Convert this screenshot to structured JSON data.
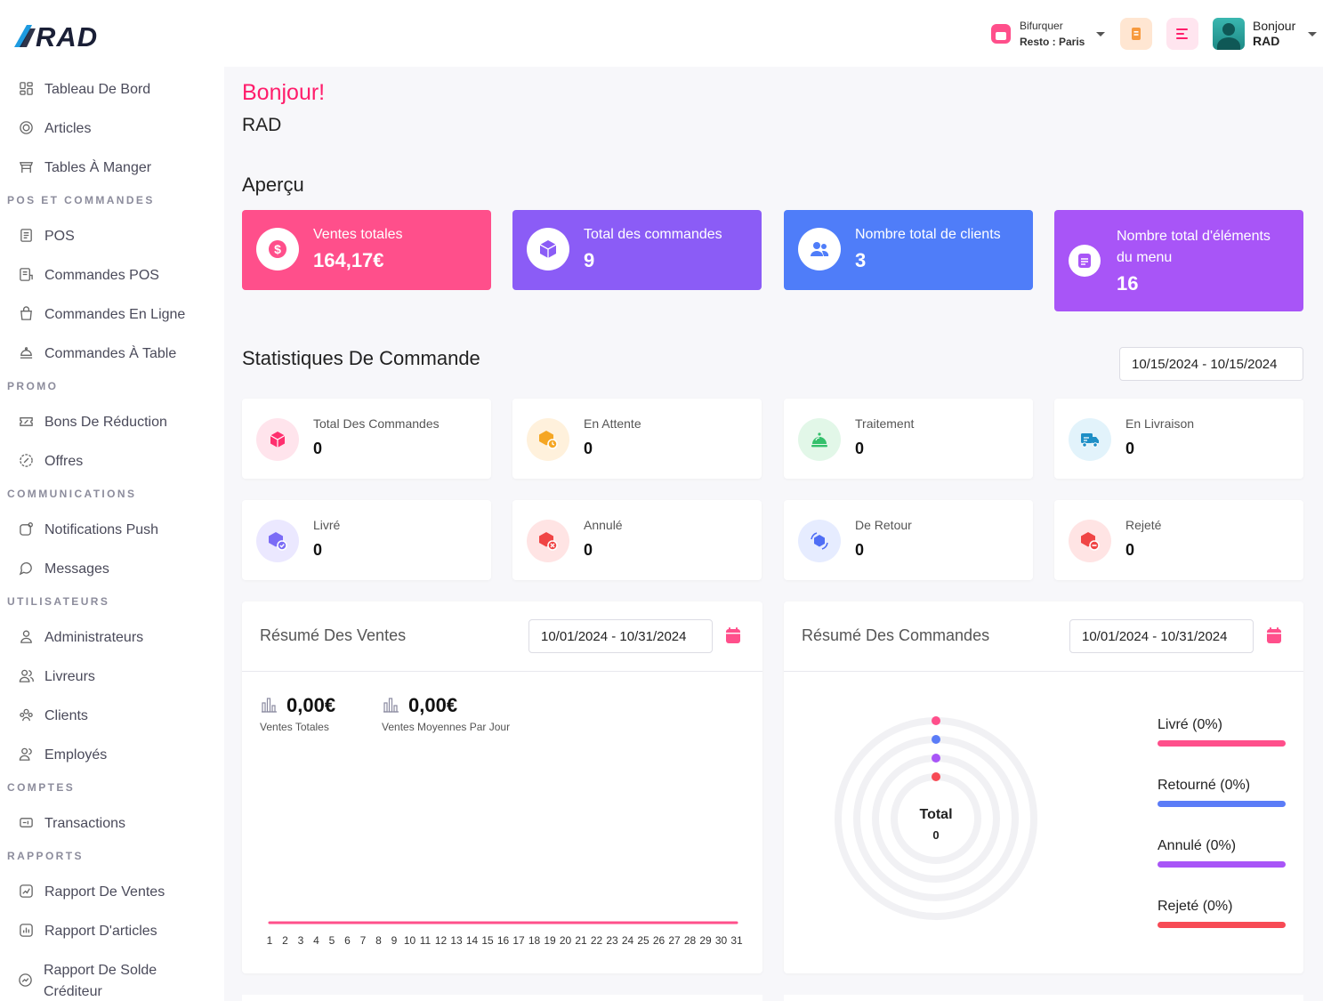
{
  "header": {
    "logo_text": "RAD",
    "branch_line1": "Bifurquer",
    "branch_line2": "Resto : Paris",
    "user_greeting": "Bonjour",
    "user_name": "RAD"
  },
  "sidebar": {
    "items_top": [
      {
        "label": "Tableau De Bord",
        "icon": "dashboard-icon"
      },
      {
        "label": "Articles",
        "icon": "articles-icon"
      },
      {
        "label": "Tables À Manger",
        "icon": "dining-table-icon"
      }
    ],
    "section_pos": "POS ET COMMANDES",
    "items_pos": [
      {
        "label": "POS",
        "icon": "pos-icon"
      },
      {
        "label": "Commandes POS",
        "icon": "pos-orders-icon"
      },
      {
        "label": "Commandes En Ligne",
        "icon": "online-orders-icon"
      },
      {
        "label": "Commandes À Table",
        "icon": "table-orders-icon"
      }
    ],
    "section_promo": "PROMO",
    "items_promo": [
      {
        "label": "Bons De Réduction",
        "icon": "coupon-icon"
      },
      {
        "label": "Offres",
        "icon": "offer-icon"
      }
    ],
    "section_comm": "COMMUNICATIONS",
    "items_comm": [
      {
        "label": "Notifications Push",
        "icon": "push-notification-icon"
      },
      {
        "label": "Messages",
        "icon": "messages-icon"
      }
    ],
    "section_users": "UTILISATEURS",
    "items_users": [
      {
        "label": "Administrateurs",
        "icon": "admin-icon"
      },
      {
        "label": "Livreurs",
        "icon": "delivery-boys-icon"
      },
      {
        "label": "Clients",
        "icon": "customers-icon"
      },
      {
        "label": "Employés",
        "icon": "employees-icon"
      }
    ],
    "section_accounts": "COMPTES",
    "items_accounts": [
      {
        "label": "Transactions",
        "icon": "transactions-icon"
      }
    ],
    "section_reports": "RAPPORTS",
    "items_reports": [
      {
        "label": "Rapport De Ventes",
        "icon": "sales-report-icon"
      },
      {
        "label": "Rapport D'articles",
        "icon": "items-report-icon"
      },
      {
        "label": "Rapport De Solde Créditeur",
        "icon": "credit-balance-report-icon"
      }
    ]
  },
  "main": {
    "greeting": "Bonjour!",
    "greeting_name": "RAD",
    "overview_title": "Aperçu",
    "kpis": [
      {
        "title": "Ventes totales",
        "value": "164,17€",
        "color": "#ff4f8b",
        "icon": "dollar-icon"
      },
      {
        "title": "Total des commandes",
        "value": "9",
        "color": "#8b5cf6",
        "icon": "box-icon"
      },
      {
        "title": "Nombre total de clients",
        "value": "3",
        "color": "#4f7df9",
        "icon": "users-icon"
      },
      {
        "title": "Nombre total d'éléments du menu",
        "value": "16",
        "color": "#a855f7",
        "icon": "menu-doc-icon"
      }
    ],
    "order_stats_title": "Statistiques De Commande",
    "order_stats_date": "10/15/2024  -  10/15/2024",
    "order_stats": [
      {
        "label": "Total Des Commandes",
        "value": "0",
        "icon": "cube-icon",
        "bg": "#ffe4ec",
        "fg": "#ff2f6e"
      },
      {
        "label": "En Attente",
        "value": "0",
        "icon": "pending-box-icon",
        "bg": "#fff1dc",
        "fg": "#f5a623"
      },
      {
        "label": "Traitement",
        "value": "0",
        "icon": "cloche-icon",
        "bg": "#e2f7e8",
        "fg": "#34c06b"
      },
      {
        "label": "En Livraison",
        "value": "0",
        "icon": "delivery-truck-icon",
        "bg": "#e2f3fb",
        "fg": "#1e8fc6"
      },
      {
        "label": "Livré",
        "value": "0",
        "icon": "delivered-box-icon",
        "bg": "#ebe8ff",
        "fg": "#7b6cf6"
      },
      {
        "label": "Annulé",
        "value": "0",
        "icon": "cancelled-box-icon",
        "bg": "#ffe4e4",
        "fg": "#f04545"
      },
      {
        "label": "De Retour",
        "value": "0",
        "icon": "returned-box-icon",
        "bg": "#e6ecff",
        "fg": "#4f6ef5"
      },
      {
        "label": "Rejeté",
        "value": "0",
        "icon": "rejected-box-icon",
        "bg": "#ffe4e4",
        "fg": "#f04545"
      }
    ],
    "sales_summary": {
      "title": "Résumé Des Ventes",
      "date": "10/01/2024  -  10/31/2024",
      "total_value": "0,00€",
      "total_label": "Ventes Totales",
      "avg_value": "0,00€",
      "avg_label": "Ventes Moyennes Par Jour"
    },
    "orders_summary": {
      "title": "Résumé Des Commandes",
      "date": "10/01/2024  -  10/31/2024",
      "center_label": "Total",
      "center_value": "0",
      "legend": [
        {
          "label": "Livré (0%)",
          "color": "#ff4f8b"
        },
        {
          "label": "Retourné (0%)",
          "color": "#5b7cf7"
        },
        {
          "label": "Annulé (0%)",
          "color": "#a855f7"
        },
        {
          "label": "Rejeté (0%)",
          "color": "#f74a55"
        }
      ]
    }
  },
  "chart_data": [
    {
      "type": "line",
      "x": [
        1,
        2,
        3,
        4,
        5,
        6,
        7,
        8,
        9,
        10,
        11,
        12,
        13,
        14,
        15,
        16,
        17,
        18,
        19,
        20,
        21,
        22,
        23,
        24,
        25,
        26,
        27,
        28,
        29,
        30,
        31
      ],
      "series": [
        {
          "values": [
            0,
            0,
            0,
            0,
            0,
            0,
            0,
            0,
            0,
            0,
            0,
            0,
            0,
            0,
            0,
            0,
            0,
            0,
            0,
            0,
            0,
            0,
            0,
            0,
            0,
            0,
            0,
            0,
            0,
            0,
            0
          ],
          "color": "#ff4f8b"
        }
      ],
      "grid": false
    },
    {
      "type": "pie",
      "categories": [
        "Livré",
        "Retourné",
        "Annulé",
        "Rejeté"
      ],
      "values": [
        0,
        0,
        0,
        0
      ],
      "colors": [
        "#ff4f8b",
        "#5b7cf7",
        "#a855f7",
        "#f74a55"
      ],
      "total": 0
    }
  ]
}
